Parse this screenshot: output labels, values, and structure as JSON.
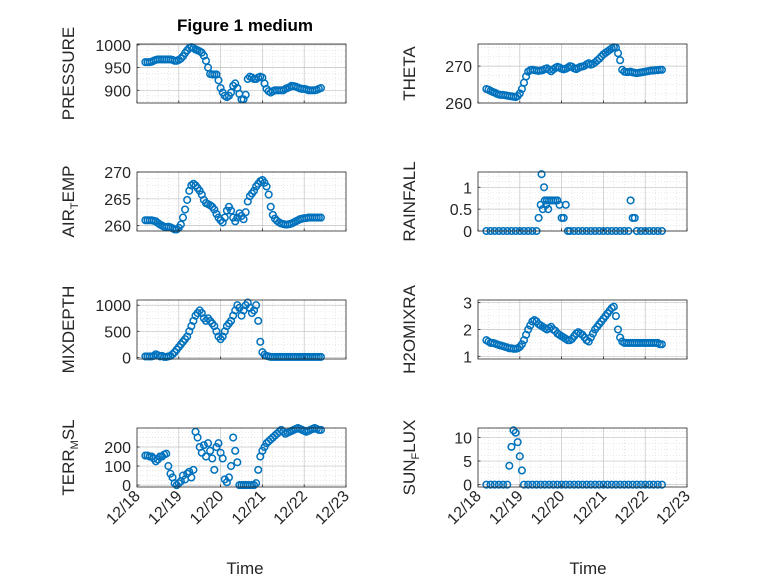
{
  "figure_title": "Figure 1 medium",
  "x_ticks": [
    "12/18",
    "12/19",
    "12/20",
    "12/21",
    "12/22",
    "12/23"
  ],
  "xlabel": "Time",
  "marker_color": "#0072BD",
  "chart_data": [
    {
      "type": "scatter",
      "title": "Figure 1 medium",
      "ylabel": "PRESSURE",
      "xlim": [
        0,
        5
      ],
      "ylim": [
        872,
        1002
      ],
      "yticks": [
        900,
        950,
        1000
      ],
      "x": [
        0.2,
        0.25,
        0.3,
        0.35,
        0.4,
        0.45,
        0.5,
        0.55,
        0.6,
        0.65,
        0.7,
        0.75,
        0.8,
        0.85,
        0.9,
        0.95,
        1.0,
        1.05,
        1.1,
        1.15,
        1.2,
        1.25,
        1.3,
        1.35,
        1.4,
        1.45,
        1.5,
        1.55,
        1.6,
        1.65,
        1.7,
        1.75,
        1.8,
        1.85,
        1.9,
        1.95,
        2.0,
        2.05,
        2.1,
        2.15,
        2.2,
        2.25,
        2.3,
        2.35,
        2.4,
        2.45,
        2.5,
        2.55,
        2.6,
        2.65,
        2.7,
        2.75,
        2.8,
        2.85,
        2.9,
        2.95,
        3.0,
        3.05,
        3.1,
        3.15,
        3.2,
        3.25,
        3.3,
        3.35,
        3.4,
        3.45,
        3.5,
        3.55,
        3.6,
        3.65,
        3.7,
        3.75,
        3.8,
        3.85,
        3.9,
        3.95,
        4.0,
        4.05,
        4.1,
        4.15,
        4.2,
        4.25,
        4.3,
        4.35,
        4.4
      ],
      "y": [
        962,
        962,
        962,
        963,
        965,
        967,
        968,
        968,
        968,
        968,
        968,
        968,
        968,
        967,
        965,
        965,
        967,
        970,
        975,
        982,
        988,
        993,
        995,
        993,
        990,
        988,
        986,
        983,
        976,
        965,
        950,
        936,
        935,
        935,
        935,
        922,
        905,
        895,
        888,
        885,
        888,
        895,
        910,
        915,
        905,
        892,
        880,
        880,
        890,
        925,
        930,
        928,
        925,
        925,
        928,
        930,
        928,
        915,
        903,
        898,
        895,
        898,
        900,
        900,
        900,
        900,
        900,
        903,
        905,
        907,
        910,
        909,
        908,
        906,
        904,
        903,
        903,
        902,
        900,
        900,
        900,
        900,
        901,
        903,
        905
      ]
    },
    {
      "type": "scatter",
      "ylabel": "THETA",
      "xlim": [
        0,
        5
      ],
      "ylim": [
        260,
        276
      ],
      "yticks": [
        260,
        270
      ],
      "x": [
        0.2,
        0.25,
        0.3,
        0.35,
        0.4,
        0.45,
        0.5,
        0.55,
        0.6,
        0.65,
        0.7,
        0.75,
        0.8,
        0.85,
        0.9,
        0.95,
        1.0,
        1.05,
        1.1,
        1.15,
        1.2,
        1.25,
        1.3,
        1.35,
        1.4,
        1.45,
        1.5,
        1.55,
        1.6,
        1.65,
        1.7,
        1.75,
        1.8,
        1.85,
        1.9,
        1.95,
        2.0,
        2.05,
        2.1,
        2.15,
        2.2,
        2.25,
        2.3,
        2.35,
        2.4,
        2.45,
        2.5,
        2.55,
        2.6,
        2.65,
        2.7,
        2.75,
        2.8,
        2.85,
        2.9,
        2.95,
        3.0,
        3.05,
        3.1,
        3.15,
        3.2,
        3.25,
        3.3,
        3.35,
        3.4,
        3.45,
        3.5,
        3.55,
        3.6,
        3.65,
        3.7,
        3.75,
        3.8,
        3.85,
        3.9,
        3.95,
        4.0,
        4.05,
        4.1,
        4.15,
        4.2,
        4.25,
        4.3,
        4.35,
        4.4
      ],
      "y": [
        263.8,
        263.6,
        263.3,
        263,
        262.8,
        262.5,
        262.3,
        262.2,
        262.2,
        262.1,
        262.0,
        261.9,
        261.8,
        261.7,
        261.6,
        261.9,
        262.6,
        263.8,
        265.5,
        267.2,
        268.5,
        268.9,
        269.0,
        268.9,
        268.8,
        268.7,
        268.8,
        268.9,
        269.2,
        269.4,
        269.0,
        268.6,
        269.1,
        269.5,
        269.8,
        269.6,
        269.3,
        269.1,
        269.3,
        269.6,
        270.0,
        269.8,
        269.4,
        269.2,
        269.5,
        269.8,
        269.9,
        270.1,
        270.5,
        270.8,
        270.4,
        270.6,
        271.0,
        271.5,
        272.0,
        272.6,
        273.2,
        273.6,
        274.0,
        274.4,
        274.8,
        275.1,
        275.0,
        273.5,
        271.6,
        269.0,
        268.5,
        268.4,
        268.4,
        268.5,
        268.3,
        268.2,
        268.1,
        268.2,
        268.3,
        268.4,
        268.5,
        268.6,
        268.7,
        268.8,
        268.8,
        268.9,
        268.9,
        269.0,
        269.0
      ]
    },
    {
      "type": "scatter",
      "ylabel": "AIR_TEMP",
      "xlim": [
        0,
        5
      ],
      "ylim": [
        259,
        270
      ],
      "yticks": [
        260,
        265,
        270
      ],
      "x": [
        0.2,
        0.25,
        0.3,
        0.35,
        0.4,
        0.45,
        0.5,
        0.55,
        0.6,
        0.65,
        0.7,
        0.75,
        0.8,
        0.85,
        0.9,
        0.95,
        1.0,
        1.05,
        1.1,
        1.15,
        1.2,
        1.25,
        1.3,
        1.35,
        1.4,
        1.45,
        1.5,
        1.55,
        1.6,
        1.65,
        1.7,
        1.75,
        1.8,
        1.85,
        1.9,
        1.95,
        2.0,
        2.05,
        2.1,
        2.15,
        2.2,
        2.25,
        2.3,
        2.35,
        2.4,
        2.45,
        2.5,
        2.55,
        2.6,
        2.65,
        2.7,
        2.75,
        2.8,
        2.85,
        2.9,
        2.95,
        3.0,
        3.05,
        3.1,
        3.15,
        3.2,
        3.25,
        3.3,
        3.35,
        3.4,
        3.45,
        3.5,
        3.55,
        3.6,
        3.65,
        3.7,
        3.75,
        3.8,
        3.85,
        3.9,
        3.95,
        4.0,
        4.05,
        4.1,
        4.15,
        4.2,
        4.25,
        4.3,
        4.35,
        4.4
      ],
      "y": [
        261,
        261,
        261,
        261,
        260.9,
        260.8,
        260.5,
        260.2,
        260,
        259.8,
        259.7,
        259.8,
        259.7,
        259.5,
        259.3,
        259.3,
        259.6,
        260.2,
        261.5,
        263,
        264.8,
        266.5,
        267.5,
        267.8,
        267.5,
        267,
        266.5,
        265.8,
        264.8,
        264.2,
        264,
        263.8,
        263.5,
        263,
        262.2,
        261.5,
        261,
        260.6,
        261.5,
        262.8,
        263.5,
        262.8,
        261.5,
        260.8,
        261.5,
        262.3,
        261.8,
        261.2,
        262.5,
        264.5,
        265.5,
        266,
        266.5,
        267.3,
        267.8,
        268.3,
        268.5,
        268,
        267.3,
        265.8,
        263.5,
        262,
        261.3,
        260.9,
        260.6,
        260.4,
        260.3,
        260.2,
        260.2,
        260.3,
        260.4,
        260.6,
        260.8,
        261,
        261.2,
        261.3,
        261.4,
        261.4,
        261.5,
        261.5,
        261.5,
        261.5,
        261.5,
        261.5,
        261.5
      ]
    },
    {
      "type": "scatter",
      "ylabel": "RAINFALL",
      "xlim": [
        0,
        5
      ],
      "ylim": [
        0,
        1.35
      ],
      "yticks": [
        0,
        0.5,
        1
      ],
      "x": [
        0.2,
        0.3,
        0.4,
        0.5,
        0.6,
        0.7,
        0.8,
        0.9,
        1.0,
        1.1,
        1.2,
        1.3,
        1.4,
        1.45,
        1.5,
        1.52,
        1.55,
        1.58,
        1.6,
        1.63,
        1.65,
        1.68,
        1.7,
        1.75,
        1.8,
        1.85,
        1.9,
        1.95,
        2.0,
        2.05,
        2.1,
        2.15,
        2.2,
        2.3,
        2.4,
        2.5,
        2.6,
        2.7,
        2.8,
        2.9,
        3.0,
        3.1,
        3.2,
        3.3,
        3.4,
        3.5,
        3.6,
        3.65,
        3.7,
        3.75,
        3.8,
        3.9,
        4.0,
        4.1,
        4.2,
        4.3,
        4.4
      ],
      "y": [
        0,
        0,
        0,
        0,
        0,
        0,
        0,
        0,
        0,
        0,
        0,
        0,
        0,
        0.3,
        0.6,
        1.3,
        0.5,
        1.0,
        0.7,
        0.6,
        0.7,
        0.5,
        0.7,
        0.7,
        0.7,
        0.7,
        0.7,
        0.6,
        0.3,
        0.3,
        0.6,
        0,
        0,
        0,
        0,
        0,
        0,
        0,
        0,
        0,
        0,
        0,
        0,
        0,
        0,
        0,
        0,
        0.7,
        0.3,
        0.3,
        0,
        0,
        0,
        0,
        0,
        0,
        0
      ]
    },
    {
      "type": "scatter",
      "ylabel": "MIXDEPTH",
      "xlim": [
        0,
        5
      ],
      "ylim": [
        -30,
        1100
      ],
      "yticks": [
        0,
        500,
        1000
      ],
      "x": [
        0.2,
        0.25,
        0.3,
        0.35,
        0.4,
        0.45,
        0.5,
        0.55,
        0.6,
        0.65,
        0.7,
        0.75,
        0.8,
        0.85,
        0.9,
        0.95,
        1.0,
        1.05,
        1.1,
        1.15,
        1.2,
        1.25,
        1.3,
        1.35,
        1.4,
        1.45,
        1.5,
        1.55,
        1.6,
        1.65,
        1.7,
        1.75,
        1.8,
        1.85,
        1.9,
        1.95,
        2.0,
        2.05,
        2.1,
        2.15,
        2.2,
        2.25,
        2.3,
        2.35,
        2.4,
        2.45,
        2.5,
        2.55,
        2.6,
        2.65,
        2.7,
        2.75,
        2.8,
        2.85,
        2.9,
        2.95,
        3.0,
        3.05,
        3.1,
        3.15,
        3.2,
        3.25,
        3.3,
        3.35,
        3.4,
        3.45,
        3.5,
        3.55,
        3.6,
        3.65,
        3.7,
        3.75,
        3.8,
        3.85,
        3.9,
        3.95,
        4.0,
        4.05,
        4.1,
        4.15,
        4.2,
        4.25,
        4.3,
        4.35,
        4.4
      ],
      "y": [
        20,
        20,
        20,
        20,
        30,
        60,
        40,
        20,
        30,
        10,
        10,
        20,
        30,
        60,
        100,
        150,
        200,
        250,
        300,
        350,
        400,
        500,
        600,
        700,
        800,
        850,
        900,
        850,
        750,
        700,
        750,
        700,
        650,
        600,
        500,
        400,
        350,
        400,
        500,
        600,
        650,
        700,
        800,
        900,
        1000,
        950,
        800,
        900,
        1000,
        1050,
        950,
        850,
        900,
        1000,
        700,
        300,
        100,
        50,
        30,
        20,
        10,
        10,
        10,
        10,
        10,
        10,
        10,
        10,
        10,
        10,
        10,
        10,
        10,
        10,
        10,
        10,
        10,
        10,
        10,
        10,
        10,
        10,
        10,
        10,
        10
      ]
    },
    {
      "type": "scatter",
      "ylabel": "H2OMIXRA",
      "xlim": [
        0,
        5
      ],
      "ylim": [
        0.9,
        3.1
      ],
      "yticks": [
        1,
        2,
        3
      ],
      "x": [
        0.2,
        0.25,
        0.3,
        0.35,
        0.4,
        0.45,
        0.5,
        0.55,
        0.6,
        0.65,
        0.7,
        0.75,
        0.8,
        0.85,
        0.9,
        0.95,
        1.0,
        1.05,
        1.1,
        1.15,
        1.2,
        1.25,
        1.3,
        1.35,
        1.4,
        1.45,
        1.5,
        1.55,
        1.6,
        1.65,
        1.7,
        1.75,
        1.8,
        1.85,
        1.9,
        1.95,
        2.0,
        2.05,
        2.1,
        2.15,
        2.2,
        2.25,
        2.3,
        2.35,
        2.4,
        2.45,
        2.5,
        2.55,
        2.6,
        2.65,
        2.7,
        2.75,
        2.8,
        2.85,
        2.9,
        2.95,
        3.0,
        3.05,
        3.1,
        3.15,
        3.2,
        3.25,
        3.3,
        3.35,
        3.4,
        3.45,
        3.5,
        3.55,
        3.6,
        3.65,
        3.7,
        3.75,
        3.8,
        3.85,
        3.9,
        3.95,
        4.0,
        4.05,
        4.1,
        4.15,
        4.2,
        4.25,
        4.3,
        4.35,
        4.4
      ],
      "y": [
        1.6,
        1.55,
        1.5,
        1.5,
        1.48,
        1.45,
        1.42,
        1.4,
        1.38,
        1.35,
        1.33,
        1.3,
        1.3,
        1.28,
        1.28,
        1.3,
        1.35,
        1.45,
        1.6,
        1.8,
        2.0,
        2.15,
        2.3,
        2.35,
        2.3,
        2.2,
        2.15,
        2.1,
        2.05,
        2.0,
        2.05,
        2.1,
        2.0,
        1.95,
        1.85,
        1.8,
        1.75,
        1.7,
        1.65,
        1.6,
        1.6,
        1.65,
        1.75,
        1.85,
        1.9,
        1.85,
        1.8,
        1.7,
        1.6,
        1.55,
        1.7,
        1.85,
        2.0,
        2.1,
        2.2,
        2.3,
        2.4,
        2.5,
        2.6,
        2.7,
        2.8,
        2.85,
        2.5,
        2.0,
        1.7,
        1.55,
        1.5,
        1.5,
        1.5,
        1.5,
        1.5,
        1.5,
        1.5,
        1.5,
        1.5,
        1.5,
        1.5,
        1.5,
        1.5,
        1.5,
        1.5,
        1.5,
        1.5,
        1.45,
        1.45
      ]
    },
    {
      "type": "scatter",
      "ylabel": "TERR_MSL",
      "xlim": [
        0,
        5
      ],
      "ylim": [
        -10,
        300
      ],
      "yticks": [
        0,
        100,
        200
      ],
      "x": [
        0.2,
        0.25,
        0.3,
        0.35,
        0.4,
        0.45,
        0.5,
        0.55,
        0.6,
        0.65,
        0.7,
        0.75,
        0.8,
        0.85,
        0.9,
        0.95,
        1.0,
        1.05,
        1.1,
        1.15,
        1.2,
        1.25,
        1.3,
        1.35,
        1.4,
        1.45,
        1.5,
        1.55,
        1.6,
        1.65,
        1.7,
        1.75,
        1.8,
        1.85,
        1.9,
        1.95,
        2.0,
        2.05,
        2.1,
        2.15,
        2.2,
        2.25,
        2.3,
        2.35,
        2.4,
        2.45,
        2.5,
        2.55,
        2.6,
        2.65,
        2.7,
        2.75,
        2.8,
        2.85,
        2.9,
        2.95,
        3.0,
        3.05,
        3.1,
        3.15,
        3.2,
        3.25,
        3.3,
        3.35,
        3.4,
        3.45,
        3.5,
        3.55,
        3.6,
        3.65,
        3.7,
        3.75,
        3.8,
        3.85,
        3.9,
        3.95,
        4.0,
        4.05,
        4.1,
        4.15,
        4.2,
        4.25,
        4.3,
        4.35,
        4.4
      ],
      "y": [
        155,
        155,
        150,
        150,
        140,
        125,
        135,
        150,
        150,
        160,
        165,
        100,
        60,
        40,
        10,
        0,
        10,
        20,
        50,
        30,
        60,
        70,
        40,
        80,
        280,
        250,
        200,
        170,
        210,
        150,
        220,
        180,
        140,
        80,
        200,
        220,
        170,
        140,
        30,
        15,
        40,
        100,
        250,
        180,
        120,
        0,
        0,
        0,
        0,
        0,
        0,
        0,
        0,
        10,
        80,
        150,
        180,
        200,
        220,
        230,
        240,
        250,
        260,
        270,
        280,
        290,
        280,
        270,
        275,
        280,
        285,
        290,
        295,
        300,
        295,
        290,
        285,
        280,
        285,
        290,
        295,
        300,
        295,
        290,
        290
      ]
    },
    {
      "type": "scatter",
      "ylabel": "SUN_FLUX",
      "xlim": [
        0,
        5
      ],
      "ylim": [
        -0.5,
        12
      ],
      "yticks": [
        0,
        5,
        10
      ],
      "x": [
        0.2,
        0.3,
        0.4,
        0.5,
        0.6,
        0.7,
        0.75,
        0.8,
        0.85,
        0.9,
        0.95,
        1.0,
        1.05,
        1.1,
        1.2,
        1.3,
        1.4,
        1.5,
        1.6,
        1.7,
        1.8,
        1.9,
        2.0,
        2.1,
        2.2,
        2.3,
        2.4,
        2.5,
        2.6,
        2.7,
        2.8,
        2.9,
        3.0,
        3.1,
        3.2,
        3.3,
        3.4,
        3.5,
        3.6,
        3.7,
        3.8,
        3.9,
        4.0,
        4.1,
        4.2,
        4.3,
        4.4
      ],
      "y": [
        0,
        0,
        0,
        0,
        0,
        0,
        4,
        8,
        11.5,
        11,
        9,
        6,
        3,
        0,
        0,
        0,
        0,
        0,
        0,
        0,
        0,
        0,
        0,
        0,
        0,
        0,
        0,
        0,
        0,
        0,
        0,
        0,
        0,
        0,
        0,
        0,
        0,
        0,
        0,
        0,
        0,
        0,
        0,
        0,
        0,
        0,
        0
      ]
    }
  ]
}
